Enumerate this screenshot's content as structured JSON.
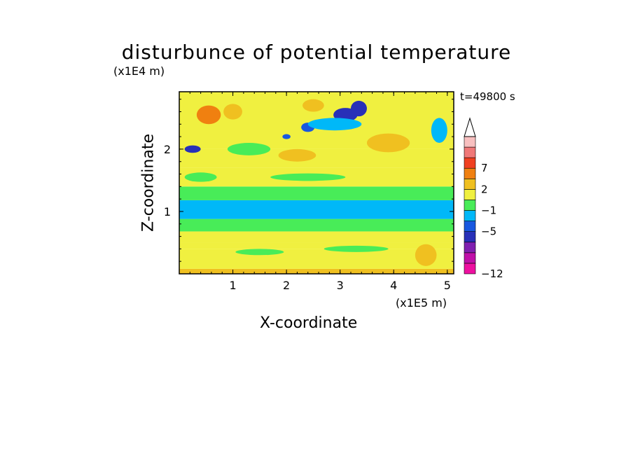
{
  "chart_data": {
    "type": "heatmap",
    "title": "disturbunce of potential temperature",
    "xlabel": "X-coordinate",
    "ylabel": "Z-coordinate",
    "x_unit_label": "(x1E5 m)",
    "y_unit_label": "(x1E4 m)",
    "time_label": "t=49800 s",
    "x_ticks": [
      "1",
      "2",
      "3",
      "4",
      "5"
    ],
    "y_ticks": [
      "1",
      "2"
    ],
    "xlim": [
      0,
      5.12
    ],
    "ylim": [
      0,
      2.92
    ],
    "colorbar": {
      "tick_labels": [
        "7",
        "2",
        "−1",
        "−5",
        "−12"
      ],
      "bins": [
        {
          "label": "",
          "color": "#ee10a0"
        },
        {
          "label": "",
          "color": "#c010a8"
        },
        {
          "label": "",
          "color": "#8020b0"
        },
        {
          "label": "",
          "color": "#2830b8"
        },
        {
          "label": "",
          "color": "#1858e0"
        },
        {
          "label": "",
          "color": "#00b8f8"
        },
        {
          "label": "",
          "color": "#48ec58"
        },
        {
          "label": "",
          "color": "#f0f040"
        },
        {
          "label": "",
          "color": "#f0c020"
        },
        {
          "label": "",
          "color": "#f08010"
        },
        {
          "label": "",
          "color": "#f04020"
        },
        {
          "label": "",
          "color": "#f07878"
        },
        {
          "label": "",
          "color": "#f8c0c0"
        }
      ],
      "extend": "max"
    },
    "bands": [
      {
        "z_min": 0.0,
        "z_max": 0.08,
        "color": "#f0c020"
      },
      {
        "z_min": 0.08,
        "z_max": 0.4,
        "color": "#f0f040"
      },
      {
        "z_min": 0.4,
        "z_max": 0.5,
        "color": "#f0f040"
      },
      {
        "z_min": 0.5,
        "z_max": 0.68,
        "color": "#f0f040"
      },
      {
        "z_min": 0.68,
        "z_max": 0.88,
        "color": "#48ec58"
      },
      {
        "z_min": 0.88,
        "z_max": 1.18,
        "color": "#00b8f8"
      },
      {
        "z_min": 1.18,
        "z_max": 1.4,
        "color": "#48ec58"
      },
      {
        "z_min": 1.4,
        "z_max": 1.7,
        "color": "#f0f040"
      },
      {
        "z_min": 1.7,
        "z_max": 2.0,
        "color": "#f0f040"
      },
      {
        "z_min": 2.0,
        "z_max": 2.92,
        "color": "#f0f040"
      }
    ],
    "features": [
      {
        "shape": "blob",
        "x": 0.25,
        "z": 2.0,
        "w": 0.3,
        "h": 0.12,
        "color": "#2830b8"
      },
      {
        "shape": "blob",
        "x": 3.1,
        "z": 2.55,
        "w": 0.45,
        "h": 0.22,
        "color": "#2830b8"
      },
      {
        "shape": "blob",
        "x": 3.35,
        "z": 2.65,
        "w": 0.3,
        "h": 0.25,
        "color": "#2830b8"
      },
      {
        "shape": "blob",
        "x": 2.4,
        "z": 2.35,
        "w": 0.25,
        "h": 0.15,
        "color": "#1858e0"
      },
      {
        "shape": "blob",
        "x": 2.0,
        "z": 2.2,
        "w": 0.15,
        "h": 0.08,
        "color": "#1858e0"
      },
      {
        "shape": "blob",
        "x": 0.55,
        "z": 2.55,
        "w": 0.45,
        "h": 0.3,
        "color": "#f08010"
      },
      {
        "shape": "blob",
        "x": 1.0,
        "z": 2.6,
        "w": 0.35,
        "h": 0.25,
        "color": "#f0c020"
      },
      {
        "shape": "blob",
        "x": 2.5,
        "z": 2.7,
        "w": 0.4,
        "h": 0.2,
        "color": "#f0c020"
      },
      {
        "shape": "blob",
        "x": 3.9,
        "z": 2.1,
        "w": 0.8,
        "h": 0.3,
        "color": "#f0c020"
      },
      {
        "shape": "blob",
        "x": 2.2,
        "z": 1.9,
        "w": 0.7,
        "h": 0.2,
        "color": "#f0c020"
      },
      {
        "shape": "blob",
        "x": 4.85,
        "z": 2.3,
        "w": 0.3,
        "h": 0.4,
        "color": "#00b8f8"
      },
      {
        "shape": "blob",
        "x": 1.3,
        "z": 2.0,
        "w": 0.8,
        "h": 0.2,
        "color": "#48ec58"
      },
      {
        "shape": "blob",
        "x": 2.9,
        "z": 2.4,
        "w": 1.0,
        "h": 0.2,
        "color": "#00b8f8"
      },
      {
        "shape": "blob",
        "x": 0.4,
        "z": 1.55,
        "w": 0.6,
        "h": 0.15,
        "color": "#48ec58"
      },
      {
        "shape": "blob",
        "x": 2.4,
        "z": 1.55,
        "w": 1.4,
        "h": 0.12,
        "color": "#48ec58"
      },
      {
        "shape": "blob",
        "x": 4.6,
        "z": 0.3,
        "w": 0.4,
        "h": 0.35,
        "color": "#f0c020"
      },
      {
        "shape": "blob",
        "x": 1.5,
        "z": 0.35,
        "w": 0.9,
        "h": 0.1,
        "color": "#48ec58"
      },
      {
        "shape": "blob",
        "x": 3.3,
        "z": 0.4,
        "w": 1.2,
        "h": 0.1,
        "color": "#48ec58"
      }
    ]
  }
}
